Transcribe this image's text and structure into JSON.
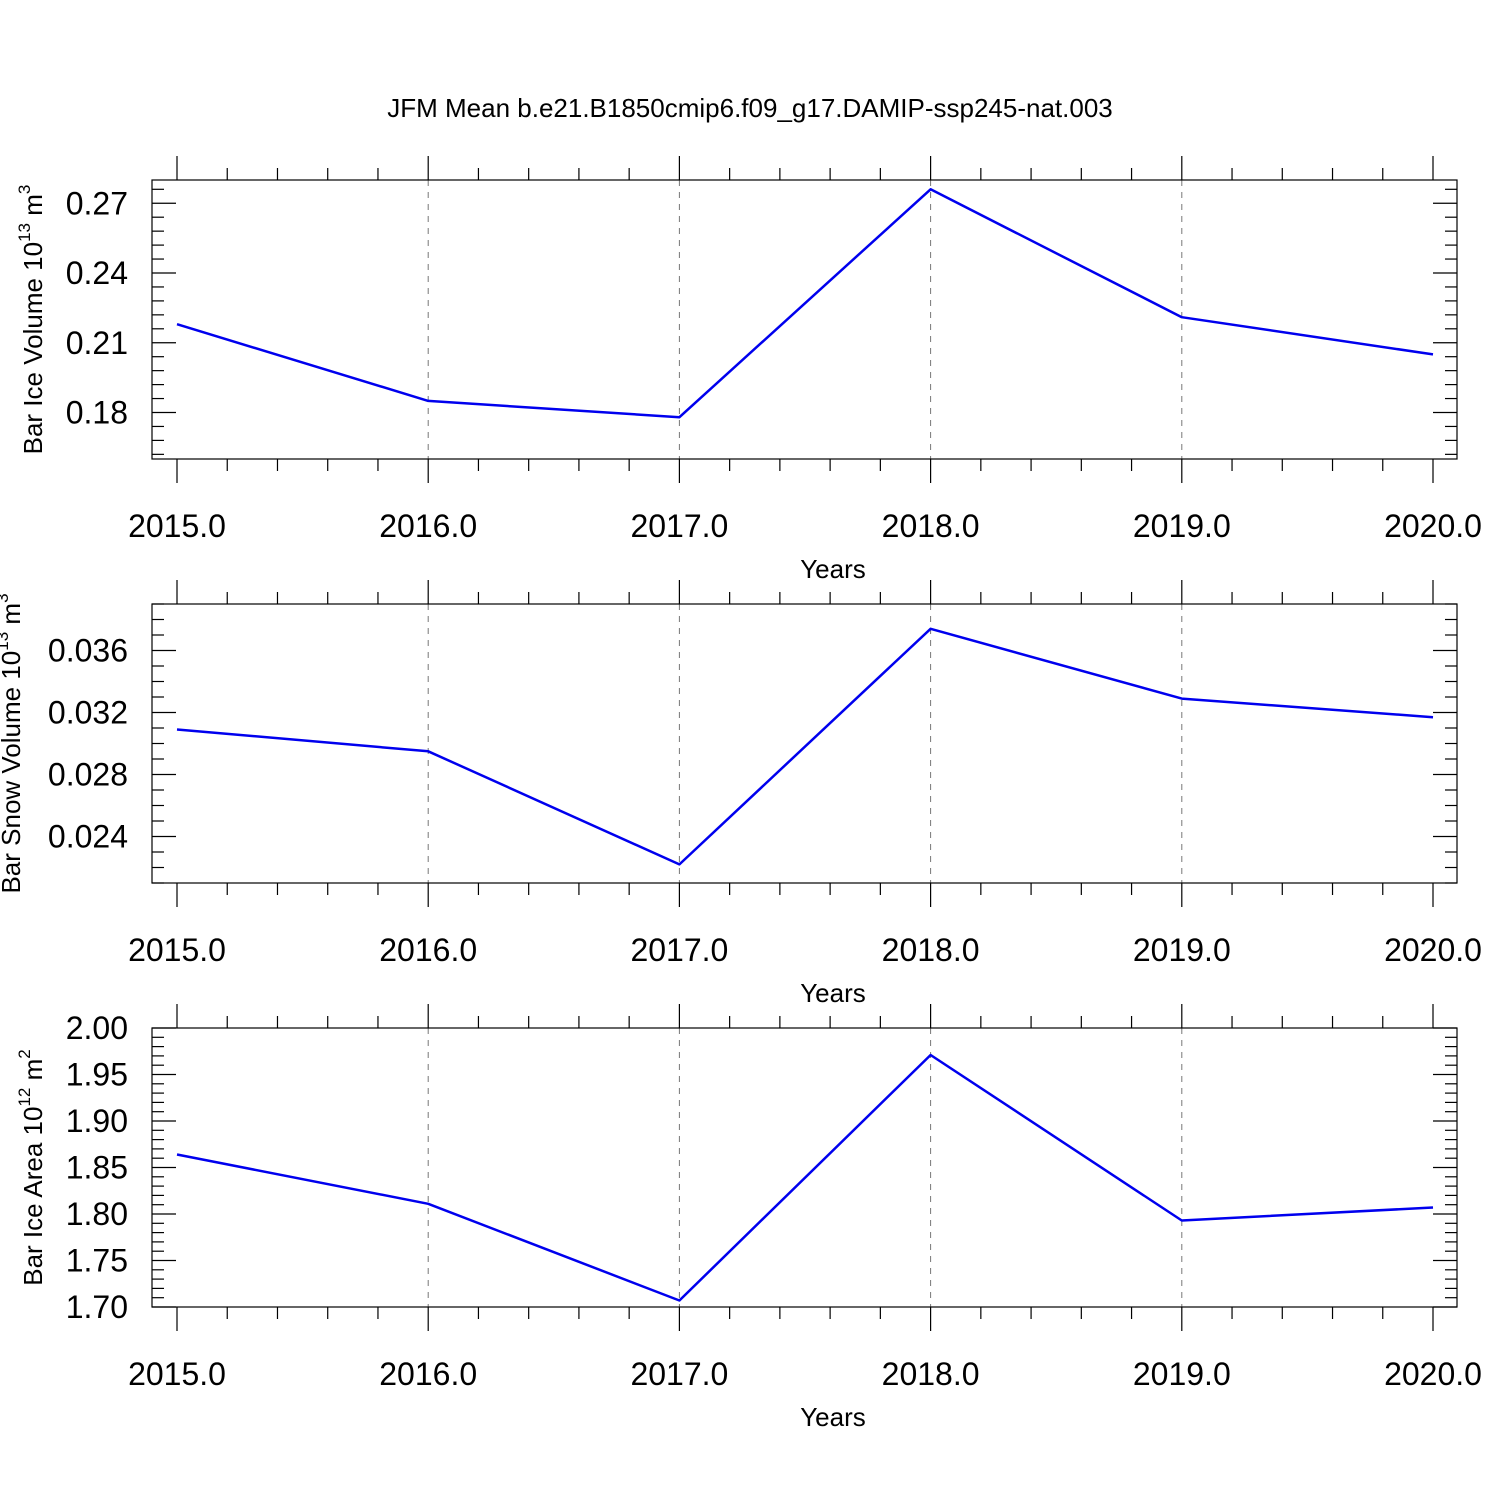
{
  "figure": {
    "title": "JFM Mean b.e21.B1850cmip6.f09_g17.DAMIP-ssp245-nat.003"
  },
  "chart_data": [
    {
      "type": "line",
      "title": "",
      "xlabel": "Years",
      "ylabel": {
        "prefix": "Bar Ice Volume 10",
        "exponent": "13",
        "unit": " m",
        "unit_exponent": "3"
      },
      "x": [
        2015,
        2016,
        2017,
        2018,
        2019,
        2020
      ],
      "xlim": [
        2015,
        2020
      ],
      "xticks": [
        "2015.0",
        "2016.0",
        "2017.0",
        "2018.0",
        "2019.0",
        "2020.0"
      ],
      "ylim": [
        0.16,
        0.28
      ],
      "yticks": [
        0.18,
        0.21,
        0.24,
        0.27
      ],
      "ytick_labels": [
        "0.18",
        "0.21",
        "0.24",
        "0.27"
      ],
      "ytick_minor_step": 0.006,
      "grid": "vertical dashed",
      "series": [
        {
          "color": "#0000ee",
          "values": [
            0.218,
            0.185,
            0.178,
            0.276,
            0.221,
            0.205
          ]
        }
      ]
    },
    {
      "type": "line",
      "title": "",
      "xlabel": "Years",
      "ylabel": {
        "prefix": "Bar Snow Volume 10",
        "exponent": "13",
        "unit": " m",
        "unit_exponent": "3"
      },
      "x": [
        2015,
        2016,
        2017,
        2018,
        2019,
        2020
      ],
      "xlim": [
        2015,
        2020
      ],
      "xticks": [
        "2015.0",
        "2016.0",
        "2017.0",
        "2018.0",
        "2019.0",
        "2020.0"
      ],
      "ylim": [
        0.021,
        0.039
      ],
      "yticks": [
        0.024,
        0.028,
        0.032,
        0.036
      ],
      "ytick_labels": [
        "0.024",
        "0.028",
        "0.032",
        "0.036"
      ],
      "ytick_minor_step": 0.001,
      "grid": "vertical dashed",
      "series": [
        {
          "color": "#0000ee",
          "values": [
            0.0309,
            0.0295,
            0.0222,
            0.0374,
            0.0329,
            0.0317
          ]
        }
      ]
    },
    {
      "type": "line",
      "title": "",
      "xlabel": "Years",
      "ylabel": {
        "prefix": "Bar Ice Area 10",
        "exponent": "12",
        "unit": " m",
        "unit_exponent": "2"
      },
      "x": [
        2015,
        2016,
        2017,
        2018,
        2019,
        2020
      ],
      "xlim": [
        2015,
        2020
      ],
      "xticks": [
        "2015.0",
        "2016.0",
        "2017.0",
        "2018.0",
        "2019.0",
        "2020.0"
      ],
      "ylim": [
        1.7,
        2.0
      ],
      "yticks": [
        1.7,
        1.75,
        1.8,
        1.85,
        1.9,
        1.95,
        2.0
      ],
      "ytick_labels": [
        "1.70",
        "1.75",
        "1.80",
        "1.85",
        "1.90",
        "1.95",
        "2.00"
      ],
      "ytick_minor_step": 0.01,
      "grid": "vertical dashed",
      "series": [
        {
          "color": "#0000ee",
          "values": [
            1.864,
            1.811,
            1.707,
            1.971,
            1.793,
            1.807
          ]
        }
      ]
    }
  ]
}
